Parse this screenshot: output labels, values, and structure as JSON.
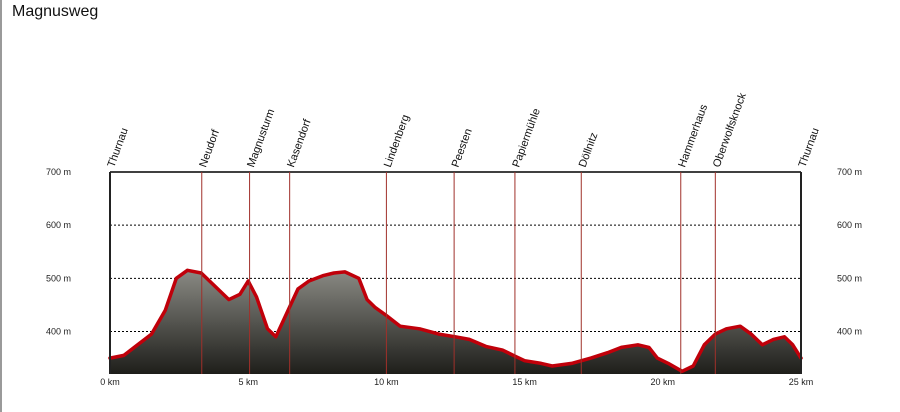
{
  "title": "Magnusweg",
  "chart_data": {
    "type": "area",
    "title": "Magnusweg",
    "xlabel": "",
    "ylabel": "",
    "x_unit": "km",
    "y_unit": "m",
    "xlim": [
      0,
      25
    ],
    "ylim": [
      320,
      700
    ],
    "x_ticks": [
      0,
      5,
      10,
      15,
      20,
      25
    ],
    "x_tick_labels": [
      "0 km",
      "5 km",
      "10 km",
      "15 km",
      "20 km",
      "25 km"
    ],
    "y_ticks": [
      400,
      500,
      600,
      700
    ],
    "y_tick_labels": [
      "400 m",
      "500 m",
      "600 m",
      "700 m"
    ],
    "grid": true,
    "colors": {
      "line": "#c0000a",
      "fill_top": "#8a8a84",
      "fill_bottom": "#1e1e1a",
      "grid": "#000000",
      "marker": "#a0302a"
    },
    "waypoints": [
      {
        "name": "Thurnau",
        "x": 0
      },
      {
        "name": "Neudorf",
        "x": 3.32
      },
      {
        "name": "Magnusturm",
        "x": 5.05
      },
      {
        "name": "Kasendorf",
        "x": 6.5
      },
      {
        "name": "Lindenberg",
        "x": 10.0
      },
      {
        "name": "Peesten",
        "x": 12.45
      },
      {
        "name": "Papiermühle",
        "x": 14.65
      },
      {
        "name": "Döllnitz",
        "x": 17.05
      },
      {
        "name": "Hammerhaus",
        "x": 20.65
      },
      {
        "name": "Oberwolfsknock",
        "x": 21.9
      },
      {
        "name": "Thurnau",
        "x": 25.0
      }
    ],
    "series": [
      {
        "x": [
          0,
          0.5,
          1.0,
          1.5,
          2.0,
          2.4,
          2.8,
          3.3,
          3.8,
          4.3,
          4.7,
          5.0,
          5.3,
          5.7,
          6.0,
          6.4,
          6.8,
          7.2,
          7.7,
          8.1,
          8.5,
          9.0,
          9.3,
          9.6,
          10.0,
          10.5,
          11.2,
          11.9,
          12.5,
          13.0,
          13.6,
          14.2,
          14.6,
          15.0,
          15.6,
          16.0,
          16.7,
          17.4,
          18.0,
          18.5,
          19.1,
          19.5,
          19.8,
          20.2,
          20.7,
          21.1,
          21.5,
          21.9,
          22.3,
          22.8,
          23.2,
          23.6,
          24.0,
          24.4,
          24.7,
          25.0
        ],
        "values": [
          350,
          355,
          375,
          395,
          440,
          500,
          515,
          510,
          485,
          460,
          470,
          495,
          465,
          405,
          390,
          435,
          480,
          495,
          505,
          510,
          512,
          500,
          460,
          445,
          430,
          410,
          405,
          395,
          390,
          385,
          372,
          365,
          355,
          345,
          340,
          335,
          340,
          350,
          360,
          370,
          375,
          370,
          350,
          340,
          325,
          335,
          375,
          395,
          405,
          410,
          395,
          375,
          385,
          390,
          375,
          350
        ]
      }
    ]
  }
}
